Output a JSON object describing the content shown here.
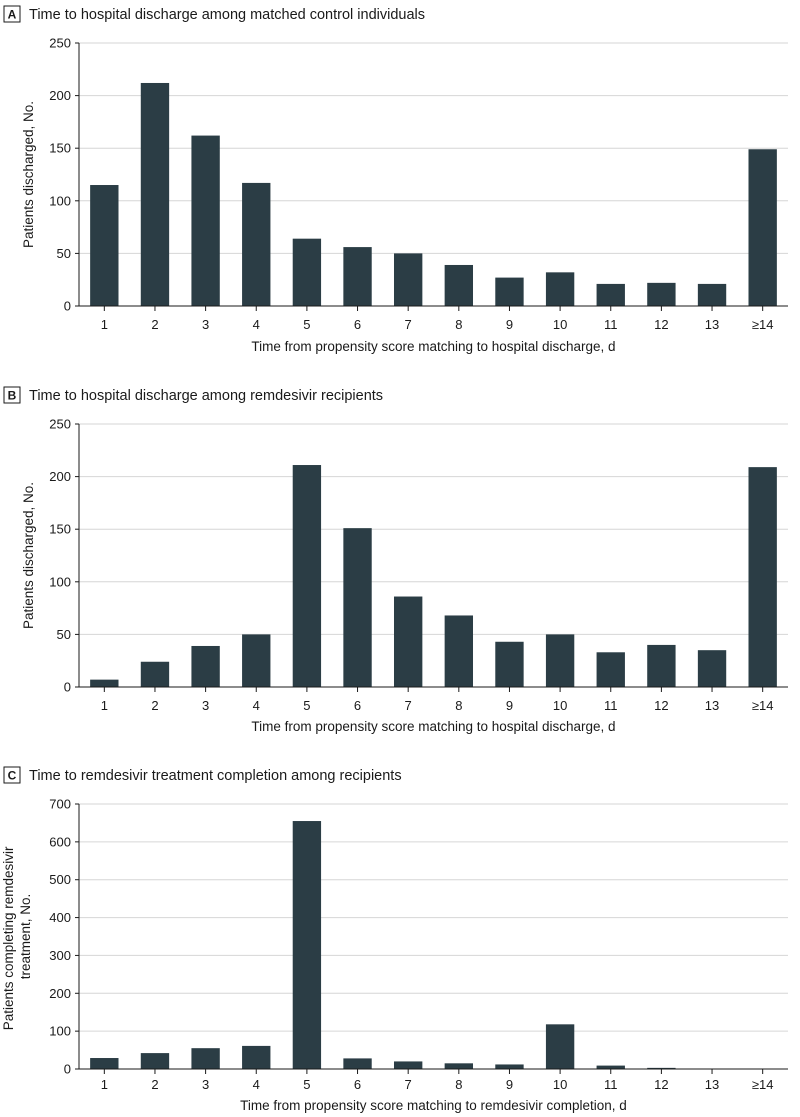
{
  "chart_data": [
    {
      "type": "bar",
      "panel": "A",
      "title": "Time to hospital discharge among matched control individuals",
      "xlabel": "Time from propensity score matching to hospital discharge, d",
      "ylabel": [
        "Patients discharged, No."
      ],
      "categories": [
        "1",
        "2",
        "3",
        "4",
        "5",
        "6",
        "7",
        "8",
        "9",
        "10",
        "11",
        "12",
        "13",
        "≥14"
      ],
      "values": [
        115,
        212,
        162,
        117,
        64,
        56,
        50,
        39,
        27,
        32,
        21,
        22,
        21,
        149
      ],
      "ylim": [
        0,
        250
      ],
      "yticks": [
        0,
        50,
        100,
        150,
        200,
        250
      ],
      "grid": true,
      "color": "#2b3d45"
    },
    {
      "type": "bar",
      "panel": "B",
      "title": "Time to hospital discharge among remdesivir recipients",
      "xlabel": "Time from propensity score matching to hospital discharge, d",
      "ylabel": [
        "Patients discharged, No."
      ],
      "categories": [
        "1",
        "2",
        "3",
        "4",
        "5",
        "6",
        "7",
        "8",
        "9",
        "10",
        "11",
        "12",
        "13",
        "≥14"
      ],
      "values": [
        7,
        24,
        39,
        50,
        211,
        151,
        86,
        68,
        43,
        50,
        33,
        40,
        35,
        209
      ],
      "ylim": [
        0,
        250
      ],
      "yticks": [
        0,
        50,
        100,
        150,
        200,
        250
      ],
      "grid": true,
      "color": "#2b3d45"
    },
    {
      "type": "bar",
      "panel": "C",
      "title": "Time to remdesivir treatment completion among recipients",
      "xlabel": "Time from propensity score matching to remdesivir completion, d",
      "ylabel": [
        "Patients completing remdesivir",
        "treatment, No."
      ],
      "categories": [
        "1",
        "2",
        "3",
        "4",
        "5",
        "6",
        "7",
        "8",
        "9",
        "10",
        "11",
        "12",
        "13",
        "≥14"
      ],
      "values": [
        29,
        42,
        55,
        61,
        655,
        28,
        20,
        15,
        12,
        118,
        9,
        3,
        0,
        0
      ],
      "ylim": [
        0,
        700
      ],
      "yticks": [
        0,
        100,
        200,
        300,
        400,
        500,
        600,
        700
      ],
      "grid": true,
      "color": "#2b3d45"
    }
  ]
}
